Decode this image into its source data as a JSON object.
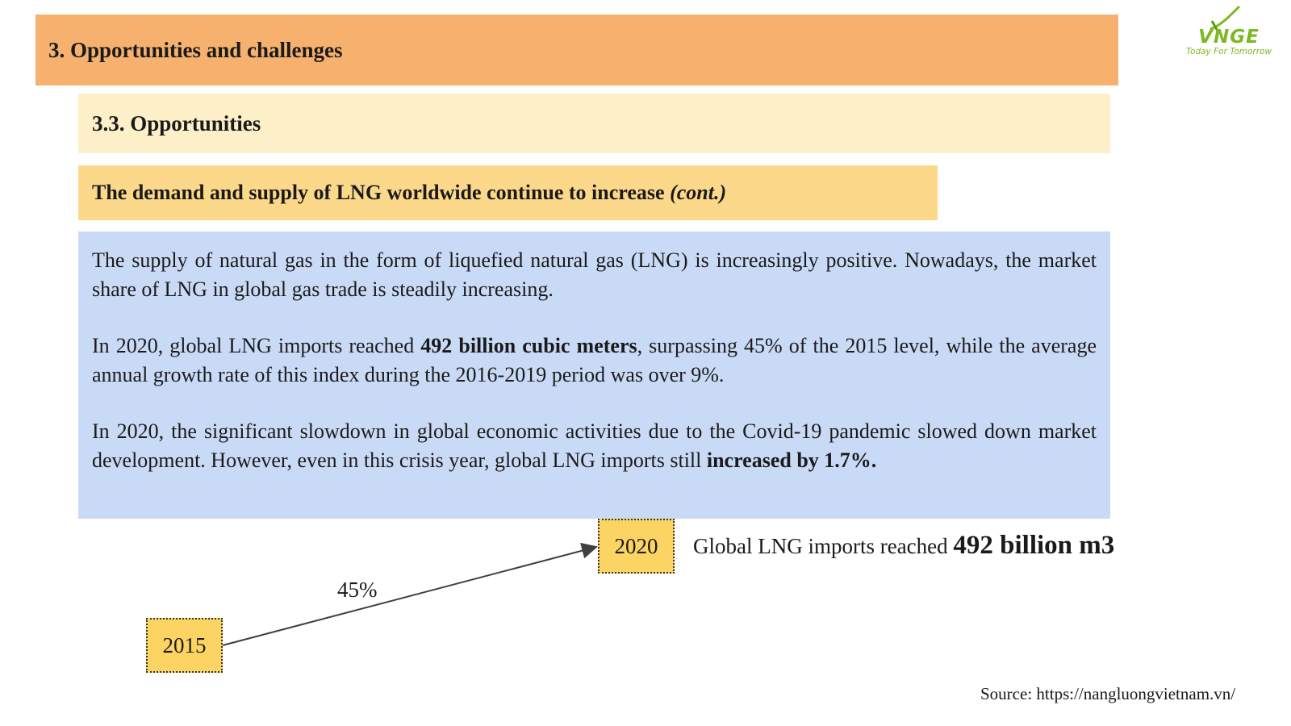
{
  "header": {
    "title": "3. Opportunities and challenges"
  },
  "logo": {
    "text": "VNGE",
    "tagline": "Today For Tomorrow",
    "color": "#7cb81f"
  },
  "subsection": {
    "title": "3.3. Opportunities"
  },
  "topic": {
    "title": "The demand and supply of LNG worldwide continue to increase",
    "suffix": "(cont.)"
  },
  "body": {
    "p1": "The supply of natural gas in the form of liquefied natural gas (LNG) is increasingly positive. Nowadays, the market share of LNG in global gas trade is steadily increasing.",
    "p2_pre": "In 2020, global LNG imports reached ",
    "p2_bold": "492 billion cubic meters",
    "p2_post": ", surpassing 45% of the 2015 level, while the average annual growth rate of this index during the 2016-2019 period was over 9%.",
    "p3_pre": "In 2020, the significant slowdown in global economic activities due to the Covid-19 pandemic slowed down market development. However, even in this crisis year, global LNG imports still ",
    "p3_bold": "increased by 1.7%."
  },
  "diagram": {
    "from_year": "2015",
    "to_year": "2020",
    "growth_label": "45%",
    "result_pre": "Global LNG imports reached ",
    "result_bold": "492 billion m3"
  },
  "footer": {
    "source": "Source: https://nangluongvietnam.vn/"
  },
  "colors": {
    "title_bar": "#f5b16d",
    "subsection_bar": "#fdf0c8",
    "topic_bar": "#fcd98a",
    "body_box": "#c9daf6",
    "year_box": "#fcd463"
  }
}
